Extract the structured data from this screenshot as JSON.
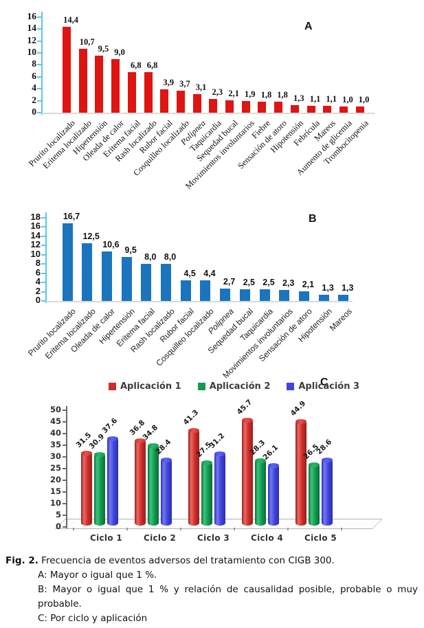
{
  "figure": {
    "panel_letters": [
      "A",
      "B",
      "C"
    ]
  },
  "chart_data": [
    {
      "type": "bar",
      "panel": "A",
      "categories": [
        "Prurito localizado",
        "Eritema localizado",
        "Hipertensión",
        "Oleada de calor",
        "Eritema facial",
        "Rash localizado",
        "Rubor facial",
        "Cosquilleo localizado",
        "Polipnea",
        "Taquicardia",
        "Sequedad bucal",
        "Movimientos involuntarios",
        "Fiebre",
        "Sensación de atoro",
        "Hipotensión",
        "Febrícula",
        "Mareos",
        "Aumento de glicemia",
        "Trombocitopenia"
      ],
      "values": [
        14.4,
        10.7,
        9.5,
        9.0,
        6.8,
        6.8,
        3.9,
        3.7,
        3.1,
        2.3,
        2.1,
        1.9,
        1.8,
        1.8,
        1.3,
        1.1,
        1.1,
        1.0,
        1.0
      ],
      "value_labels": [
        "14,4",
        "10,7",
        "9,5",
        "9,0",
        "6,8",
        "6,8",
        "3,9",
        "3,7",
        "3,1",
        "2,3",
        "2,1",
        "1,9",
        "1,8",
        "1,8",
        "1,3",
        "1,1",
        "1,1",
        "1,0",
        "1,0"
      ],
      "italic_categories": [
        "Polipnea"
      ],
      "ylim": [
        0,
        16
      ],
      "ytick_step": 2,
      "bar_color": "#e01411",
      "axis_color": "#5bc6ee",
      "grid": false,
      "legend_position": "none"
    },
    {
      "type": "bar",
      "panel": "B",
      "categories": [
        "Prurito localizado",
        "Eritema localizado",
        "Oleada de calor",
        "Hipertensión",
        "Eritema facial",
        "Rash localizado",
        "Rubor facial",
        "Cosquilleo localizado",
        "Polipnea",
        "Sequedad bucal",
        "Taquicardia",
        "Movimientos involuntarios",
        "Sensación de atoro",
        "Hipotensión",
        "Mareos"
      ],
      "values": [
        16.7,
        12.5,
        10.6,
        9.5,
        8.0,
        8.0,
        4.5,
        4.4,
        2.7,
        2.5,
        2.5,
        2.3,
        2.1,
        1.3,
        1.3
      ],
      "value_labels": [
        "16,7",
        "12,5",
        "10,6",
        "9,5",
        "8,0",
        "8,0",
        "4,5",
        "4,4",
        "2,7",
        "2,5",
        "2,5",
        "2,3",
        "2,1",
        "1,3",
        "1,3"
      ],
      "italic_categories": [
        "Polipnea"
      ],
      "ylim": [
        0,
        18
      ],
      "ytick_step": 2,
      "bar_color": "#1b74be",
      "axis_color": "#5bc6ee",
      "grid": false,
      "legend_position": "none"
    },
    {
      "type": "bar3d",
      "panel": "C",
      "categories": [
        "Ciclo 1",
        "Ciclo 2",
        "Ciclo 3",
        "Ciclo 4",
        "Ciclo 5"
      ],
      "series": [
        {
          "name": "Aplicación 1",
          "color": "#cf2d2a",
          "color_light": "#ea6a64",
          "color_dark": "#971e1c",
          "cap": "#e15450",
          "values": [
            31.5,
            36.8,
            41.3,
            45.7,
            44.9
          ],
          "value_labels": [
            "31.5",
            "36.8",
            "41.3",
            "45.7",
            "44.9"
          ]
        },
        {
          "name": "Aplicación 2",
          "color": "#129b53",
          "color_light": "#3ec579",
          "color_dark": "#0b6b39",
          "cap": "#2eb468",
          "values": [
            30.9,
            34.8,
            27.5,
            28.3,
            26.5
          ],
          "value_labels": [
            "30.9",
            "34.8",
            "27.5",
            "28.3",
            "26.5"
          ]
        },
        {
          "name": "Aplicación 3",
          "color": "#4045dd",
          "color_light": "#7479f2",
          "color_dark": "#2a2fae",
          "cap": "#6166ee",
          "values": [
            37.6,
            28.4,
            31.2,
            26.1,
            28.6
          ],
          "value_labels": [
            "37.6",
            "28.4",
            "31.2",
            "26.1",
            "28.6"
          ]
        }
      ],
      "ylim": [
        0,
        50
      ],
      "ytick_step": 5,
      "grid": false,
      "legend_position": "top"
    }
  ],
  "caption": {
    "fig_label": "Fig. 2.",
    "intro": " Frecuencia de eventos adversos del tratamiento con CIGB 300.",
    "item_a": "A: Mayor o igual que 1 %.",
    "item_b": "B: Mayor o igual que 1 % y relación de causalidad posible, probable o muy probable.",
    "item_c": "C: Por ciclo y aplicación"
  }
}
